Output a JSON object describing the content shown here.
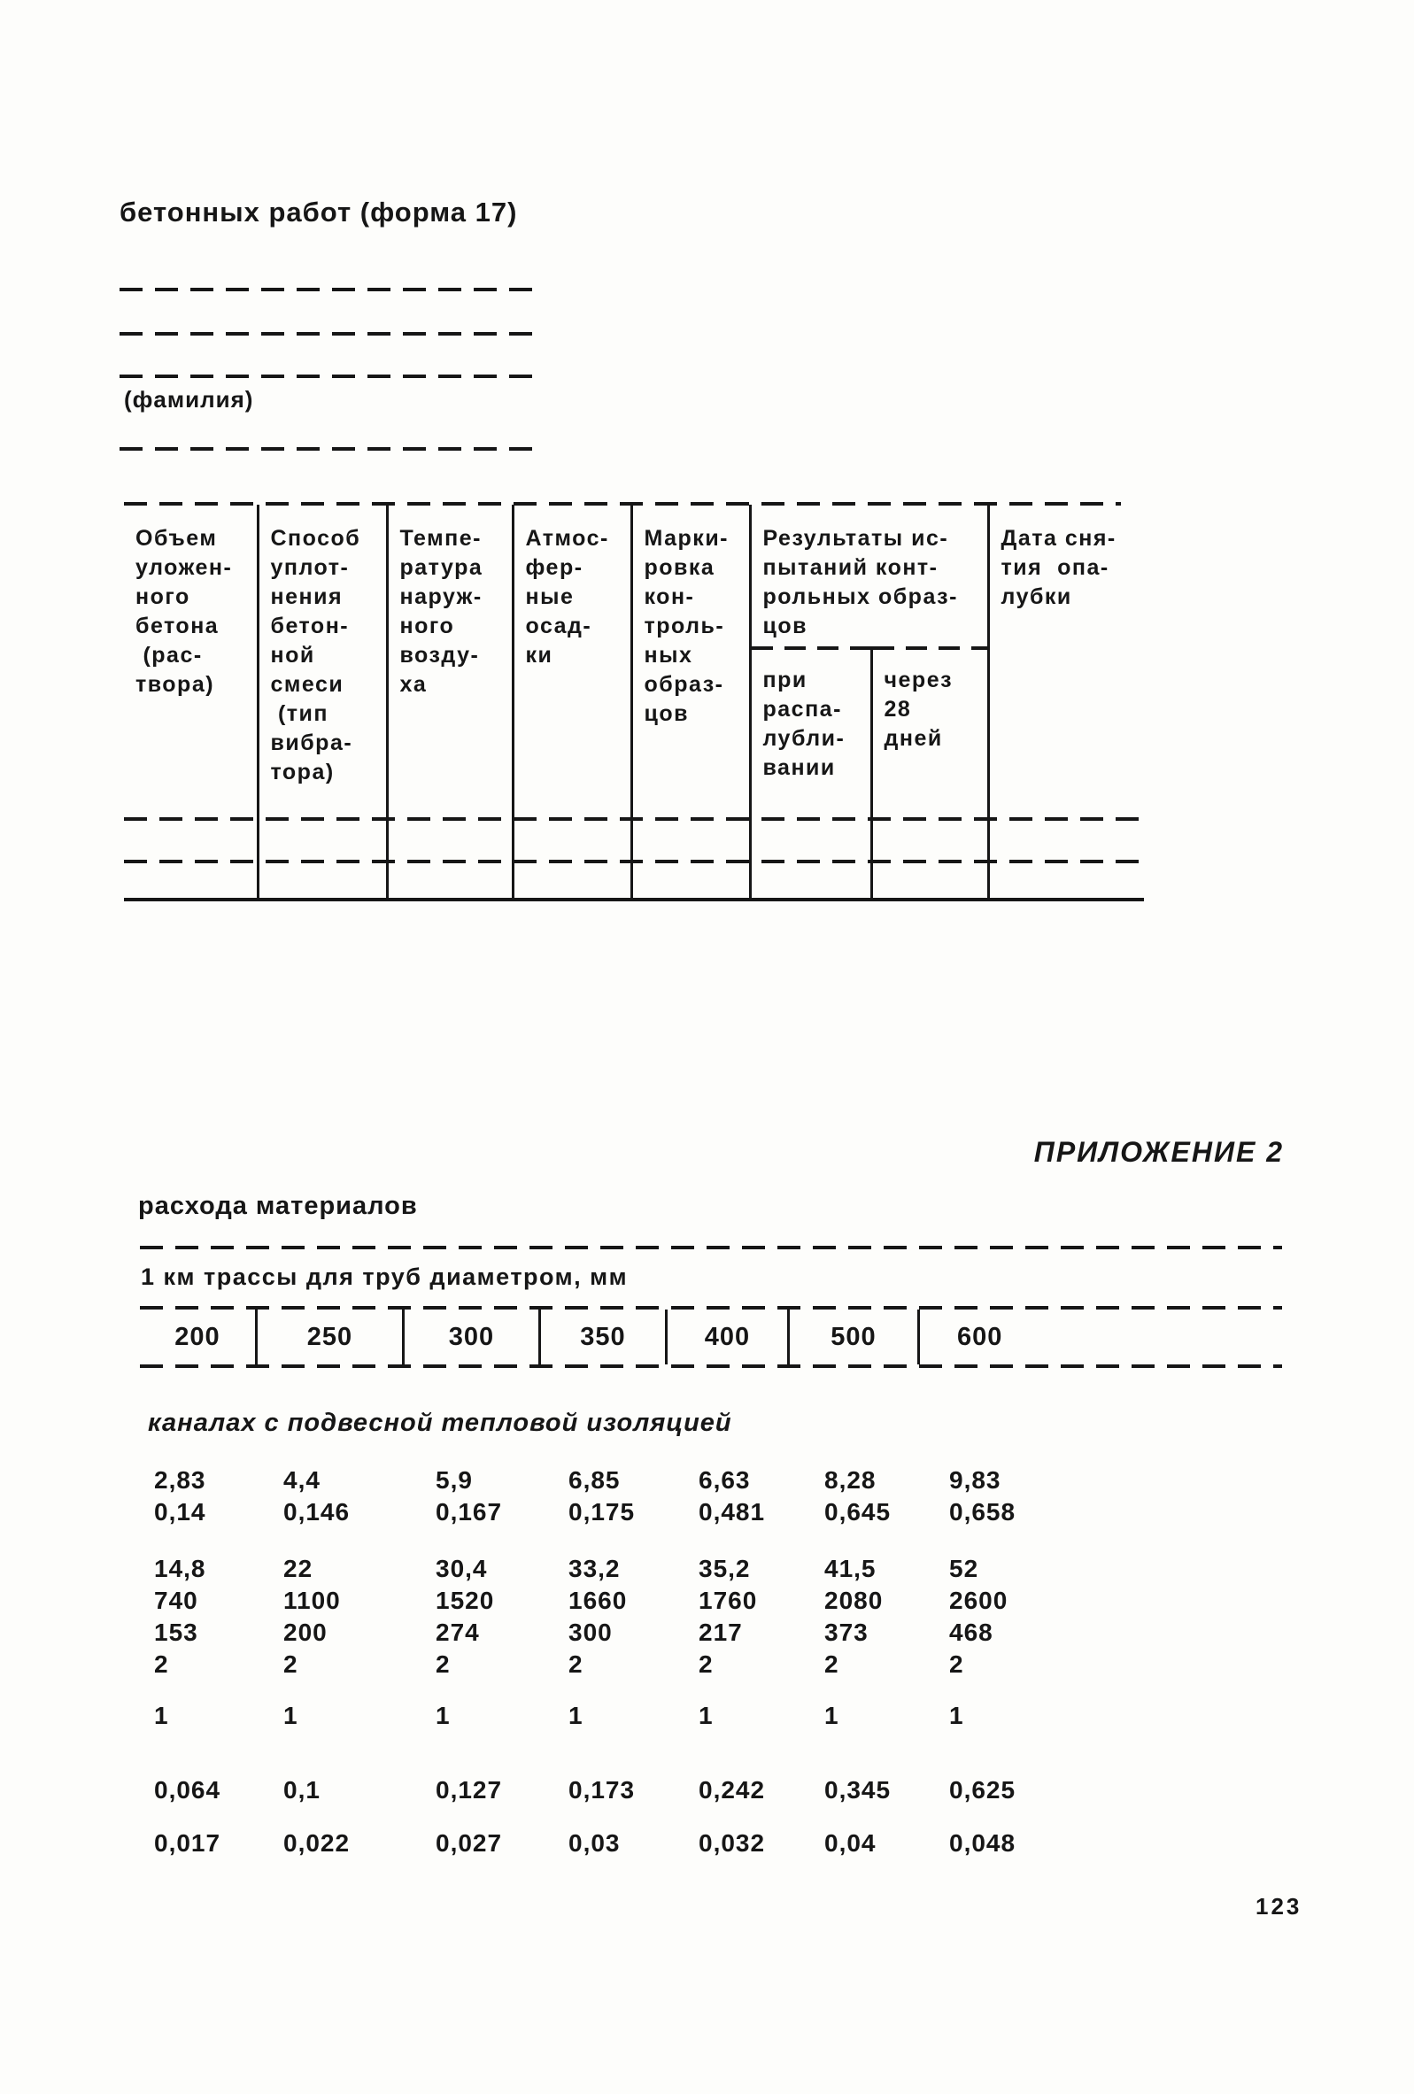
{
  "colors": {
    "ink": "#161616",
    "paper": "#fdfdfb"
  },
  "document": {
    "heading": "бетонных работ  (форма 17)",
    "signature_caption": "(фамилия)",
    "page_number": "123"
  },
  "form_table": {
    "headers": {
      "volume": "Объем\nуложен-\nного\nбетона\n (рас-\nтвора)",
      "compaction": "Способ\nуплот-\nнения\nбетон-\nной\nсмеси\n (тип\nвибра-\nтора)",
      "temperature": "Темпе-\nратура\nнаруж-\nного\nвозду-\nха",
      "precipitation": "Атмос-\nфер-\nные\nосад-\nки",
      "marking": "Марки-\nровка\nкон-\nтроль-\nных\nобраз-\nцов",
      "test_results_group": "Результаты ис-\nпытаний конт-\nрольных образ-\nцов",
      "at_form_stripping": "при\nраспа-\nлубли-\nвании",
      "after_28_days": "через\n28\nдней",
      "formwork_removal_date": "Дата сня-\nтия  опа-\nлубки"
    }
  },
  "appendix": {
    "label": "ПРИЛОЖЕНИЕ 2",
    "materials_heading": "расхода материалов",
    "table_title": "1 км трассы для труб диаметром, мм",
    "section_heading": "каналах с подвесной тепловой изоляцией",
    "diameters": [
      "200",
      "250",
      "300",
      "350",
      "400",
      "500",
      "600"
    ],
    "rows": [
      [
        "2,83",
        "4,4",
        "5,9",
        "6,85",
        "6,63",
        "8,28",
        "9,83"
      ],
      [
        "0,14",
        "0,146",
        "0,167",
        "0,175",
        "0,481",
        "0,645",
        "0,658"
      ],
      [
        "14,8",
        "22",
        "30,4",
        "33,2",
        "35,2",
        "41,5",
        "52"
      ],
      [
        "740",
        "1100",
        "1520",
        "1660",
        "1760",
        "2080",
        "2600"
      ],
      [
        "153",
        "200",
        "274",
        "300",
        "217",
        "373",
        "468"
      ],
      [
        "2",
        "2",
        "2",
        "2",
        "2",
        "2",
        "2"
      ],
      [
        "1",
        "1",
        "1",
        "1",
        "1",
        "1",
        "1"
      ],
      [
        "0,064",
        "0,1",
        "0,127",
        "0,173",
        "0,242",
        "0,345",
        "0,625"
      ],
      [
        "0,017",
        "0,022",
        "0,027",
        "0,03",
        "0,032",
        "0,04",
        "0,048"
      ]
    ]
  }
}
